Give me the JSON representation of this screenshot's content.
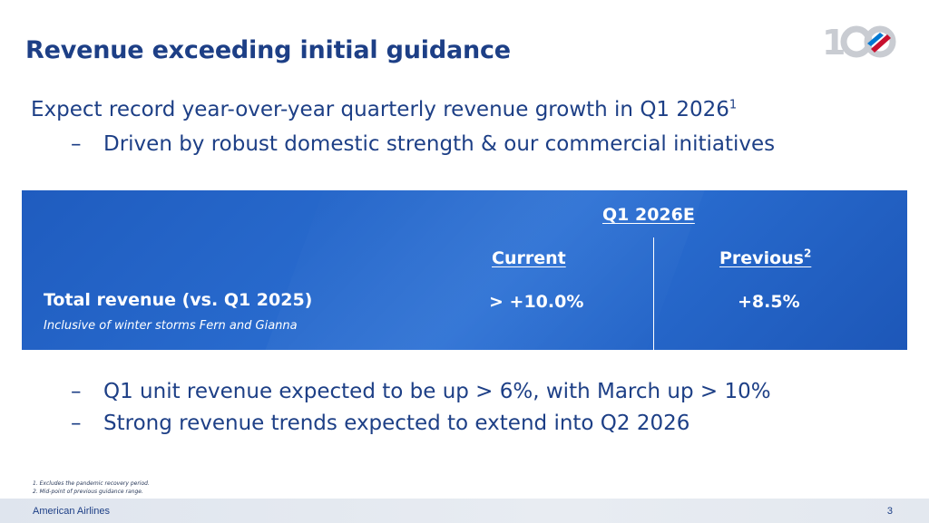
{
  "slide": {
    "title": "Revenue exceeding initial guidance",
    "logo_icon": "centennial-100-logo",
    "main_bullet": "Expect record year-over-year quarterly revenue growth in Q1 2026",
    "main_bullet_ref": "1",
    "sub_bullet_1": "Driven by robust domestic strength & our commercial initiatives",
    "sub_bullet_2": "Q1 unit revenue expected to be up > 6%, with March up > 10%",
    "sub_bullet_3": "Strong revenue trends expected to extend into Q2 2026",
    "dash": "–"
  },
  "table": {
    "period_header": "Q1 2026E",
    "col_current": "Current",
    "col_previous": "Previous",
    "col_previous_ref": "2",
    "row_label": "Total revenue (vs. Q1 2025)",
    "row_note": "Inclusive of winter storms Fern and Gianna",
    "value_current": "> +10.0%",
    "value_previous": "+8.5%",
    "colors": {
      "box_blue": "#2a6dd0",
      "title_navy": "#1d3f86"
    }
  },
  "footnotes": {
    "note_1": "1. Excludes the pandemic recovery period.",
    "note_2": "2. Mid-point of previous guidance range."
  },
  "footer": {
    "brand": "American Airlines",
    "page_number": "3"
  }
}
